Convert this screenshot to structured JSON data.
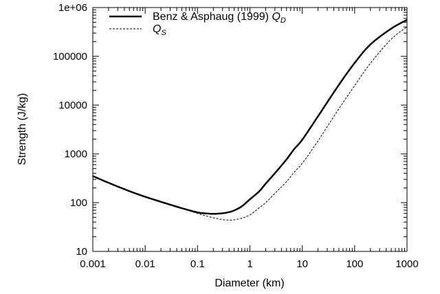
{
  "chart_data": {
    "type": "line",
    "xscale": "log",
    "yscale": "log",
    "xlim": [
      0.001,
      1000
    ],
    "ylim": [
      10,
      1000000
    ],
    "xlabel": "Diameter (km)",
    "ylabel": "Strength (J/kg)",
    "xtick_labels": [
      "0.001",
      "0.01",
      "0.1",
      "1",
      "10",
      "100",
      "1000"
    ],
    "ytick_labels": [
      "10",
      "100",
      "1000",
      "10000",
      "100000",
      "1e+06"
    ],
    "legend_position": "top-left",
    "grid": false,
    "series": [
      {
        "name": "Benz & Asphaug (1999) Q_D",
        "legend_prefix": "Benz & Asphaug (1999) ",
        "legend_symbol": "Q",
        "legend_sub": "D",
        "style": "solid",
        "color": "#000000",
        "x": [
          0.001,
          0.002,
          0.005,
          0.01,
          0.02,
          0.05,
          0.1,
          0.15,
          0.2,
          0.3,
          0.4,
          0.5,
          0.7,
          1,
          1.5,
          2,
          3,
          5,
          7,
          10,
          20,
          50,
          100,
          200,
          500,
          1000
        ],
        "y": [
          350,
          255,
          172,
          132,
          104,
          77,
          63,
          60,
          59,
          60.5,
          64,
          69,
          84,
          117,
          170,
          245,
          400,
          770,
          1250,
          1950,
          5900,
          26000,
          73000,
          175000,
          370000,
          560000
        ]
      },
      {
        "name": "Q_S",
        "legend_prefix": "",
        "legend_symbol": "Q",
        "legend_sub": "S",
        "style": "dashed",
        "color": "#000000",
        "x": [
          0.001,
          0.002,
          0.005,
          0.01,
          0.02,
          0.05,
          0.1,
          0.15,
          0.2,
          0.3,
          0.4,
          0.5,
          0.7,
          1,
          1.5,
          2,
          3,
          5,
          7,
          10,
          20,
          50,
          100,
          200,
          500,
          1000
        ],
        "y": [
          350,
          255,
          172,
          132,
          104,
          77,
          60,
          53,
          49,
          45,
          44,
          44.5,
          48,
          56,
          78,
          100,
          155,
          270,
          420,
          640,
          1850,
          8400,
          25000,
          72000,
          225000,
          400000
        ]
      }
    ]
  }
}
